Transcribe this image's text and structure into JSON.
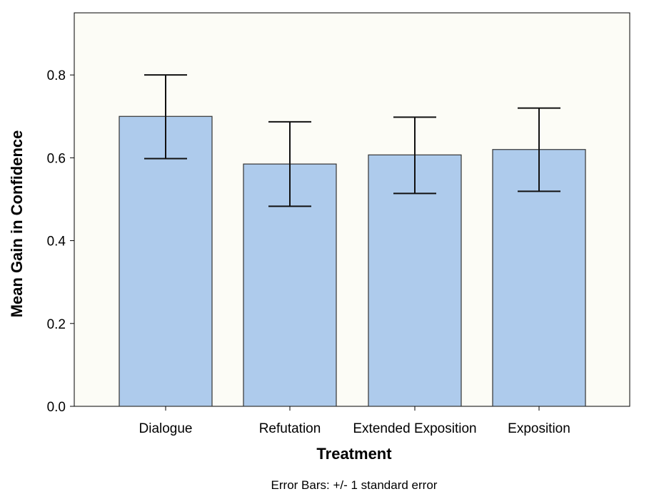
{
  "chart_data": {
    "type": "bar",
    "categories": [
      "Dialogue",
      "Refutation",
      "Extended Exposition",
      "Exposition"
    ],
    "values": [
      0.7,
      0.585,
      0.607,
      0.62
    ],
    "error_bars": {
      "upper": [
        0.8,
        0.687,
        0.698,
        0.72
      ],
      "lower": [
        0.598,
        0.483,
        0.514,
        0.519
      ]
    },
    "xlabel": "Treatment",
    "ylabel": "Mean Gain in Confidence",
    "ylim": [
      0,
      0.95
    ],
    "yticks": [
      "0.0",
      "0.2",
      "0.4",
      "0.6",
      "0.8"
    ],
    "footnote": "Error Bars: +/- 1 standard error",
    "grid": false,
    "legend": "none",
    "colors": {
      "bar_fill": "#aecbec",
      "bar_stroke": "#333333",
      "plot_background": "#fcfcf6",
      "axis": "#000000"
    }
  }
}
